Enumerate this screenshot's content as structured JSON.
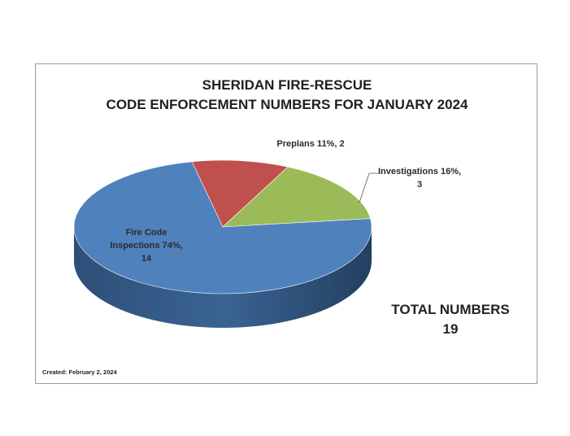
{
  "chart_data": {
    "type": "pie",
    "title_line1": "SHERIDAN FIRE-RESCUE",
    "title_line2": "CODE ENFORCEMENT NUMBERS FOR JANUARY 2024",
    "slices": [
      {
        "name": "Fire Code Inspections",
        "value": 14,
        "percent": 74,
        "label_line1": "Fire Code",
        "label_line2": "Inspections 74%,",
        "label_line3": "14",
        "color": "#4f81bd"
      },
      {
        "name": "Preplans",
        "value": 2,
        "percent": 11,
        "label_line1": "Preplans  11%, 2",
        "color": "#c0504d"
      },
      {
        "name": "Investigations",
        "value": 3,
        "percent": 16,
        "label_line1": "Investigations 16%,",
        "label_line2": "3",
        "color": "#9bbb59"
      }
    ]
  },
  "total_label": "TOTAL NUMBERS",
  "total_value": "19",
  "created_note": "Created:  February 2, 2024"
}
